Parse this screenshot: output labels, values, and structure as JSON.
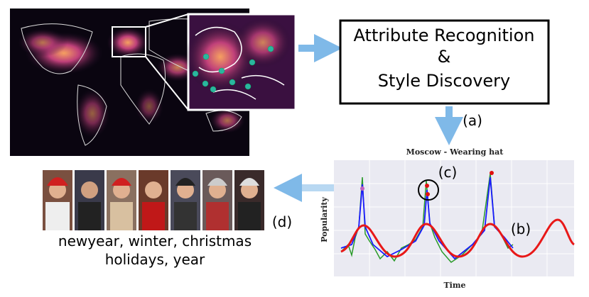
{
  "box": {
    "lines": [
      "Attribute Recognition",
      "&",
      "Style Discovery"
    ]
  },
  "labels": {
    "a": "(a)",
    "b": "(b)",
    "c": "(c)",
    "d": "(d)"
  },
  "plot": {
    "title": "Moscow - Wearing hat",
    "y_label": "Popularity",
    "x_label": "Time"
  },
  "tags": [
    "newyear, winter, christmas",
    "holidays, year"
  ]
}
